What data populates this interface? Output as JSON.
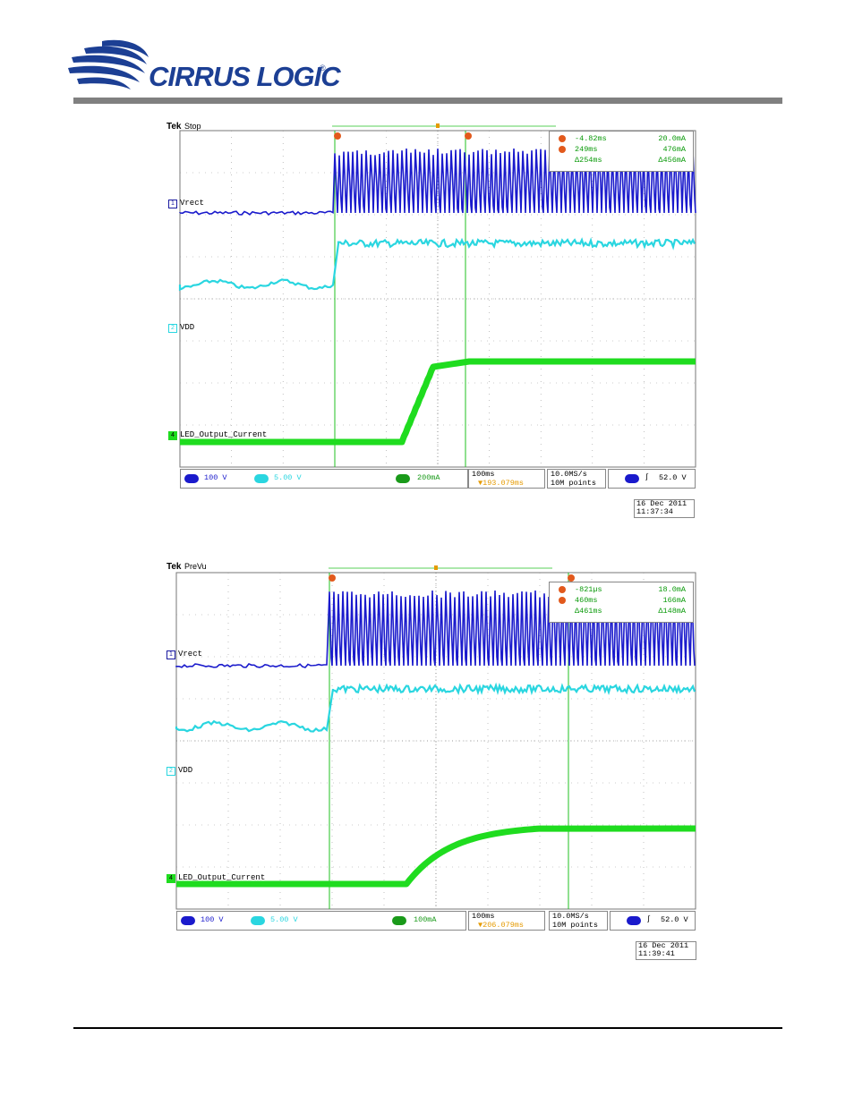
{
  "header": {
    "logo_text": "CIRRUS LOGIC",
    "logo_reg": "®"
  },
  "colors": {
    "ch1": "#1a1acc",
    "ch2": "#2ad6e0",
    "ch4": "#1fdc1f",
    "cursor": "#22c022",
    "cursor_marker": "#e2591c",
    "rule": "#808080"
  },
  "scopes": [
    {
      "brand": "Tek",
      "status": "Stop",
      "channel_labels": {
        "ch1": "Vrect",
        "ch2": "VDD",
        "ch4": "LED_Output_Current"
      },
      "channel_numbers": {
        "ch1": "1",
        "ch2": "2",
        "ch4": "4"
      },
      "cursor_markers": {
        "a": "a",
        "b": "b"
      },
      "measurements": {
        "a_time": "-4.82ms",
        "a_current": "20.0mA",
        "b_time": "249ms",
        "b_current": "476mA",
        "d_time": "Δ254ms",
        "d_current": "Δ456mA"
      },
      "status_bar": {
        "ch1_scale": "100 V",
        "ch2_scale": "5.00 V",
        "ch4_scale": "200mA",
        "timebase": "100ms",
        "trigger_pos": "▼193.079ms",
        "sample_rate": "10.0MS/s",
        "record_length": "10M points",
        "trigger_level": "52.0 V"
      },
      "date": "16 Dec 2011",
      "time": "11:37:34"
    },
    {
      "brand": "Tek",
      "status": "PreVu",
      "channel_labels": {
        "ch1": "Vrect",
        "ch2": "VDD",
        "ch4": "LED_Output_Current"
      },
      "channel_numbers": {
        "ch1": "1",
        "ch2": "2",
        "ch4": "4"
      },
      "cursor_markers": {
        "a": "a",
        "b": "b"
      },
      "measurements": {
        "a_time": "-821µs",
        "a_current": "18.0mA",
        "b_time": "460ms",
        "b_current": "166mA",
        "d_time": "Δ461ms",
        "d_current": "Δ148mA"
      },
      "status_bar": {
        "ch1_scale": "100 V",
        "ch2_scale": "5.00 V",
        "ch4_scale": "100mA",
        "timebase": "100ms",
        "trigger_pos": "▼206.079ms",
        "sample_rate": "10.0MS/s",
        "record_length": "10M points",
        "trigger_level": "52.0 V"
      },
      "date": "16 Dec 2011",
      "time": "11:39:41"
    }
  ]
}
